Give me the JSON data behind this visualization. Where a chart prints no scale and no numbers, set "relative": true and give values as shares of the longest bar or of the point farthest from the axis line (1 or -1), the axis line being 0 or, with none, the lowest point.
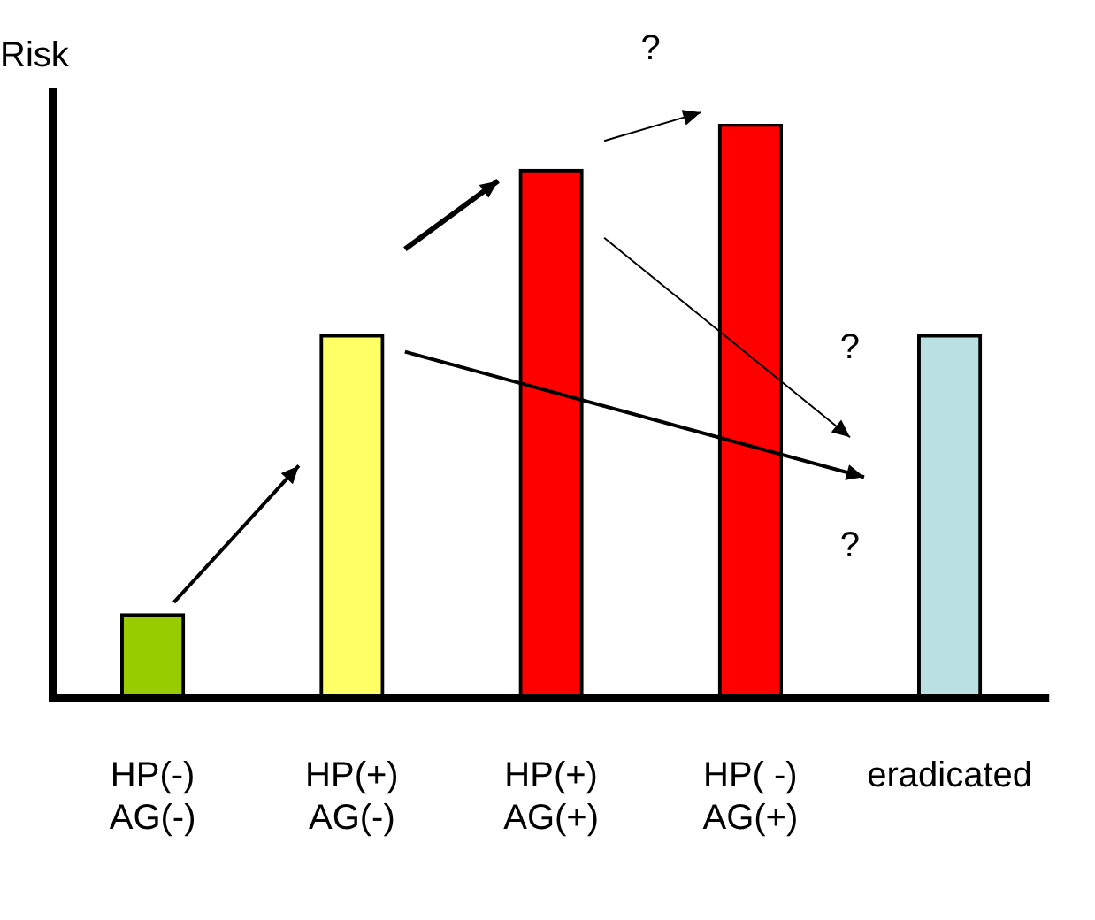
{
  "chart_data": {
    "type": "bar",
    "relative": true,
    "ylabel": "Risk",
    "categories": [
      "HP(-)\nAG(-)",
      "HP(+)\nAG(-)",
      "HP(+)\nAG(+)",
      "HP( -)\nAG(+)",
      "eradicated"
    ],
    "values": [
      0.14,
      0.63,
      0.92,
      1,
      0.63
    ],
    "colors": [
      "#99cc00",
      "#ffff66",
      "#ff0000",
      "#ff0000",
      "#bbe0e3"
    ],
    "annotations": [
      "?",
      "?",
      "?"
    ],
    "grid": false,
    "legend": false
  }
}
